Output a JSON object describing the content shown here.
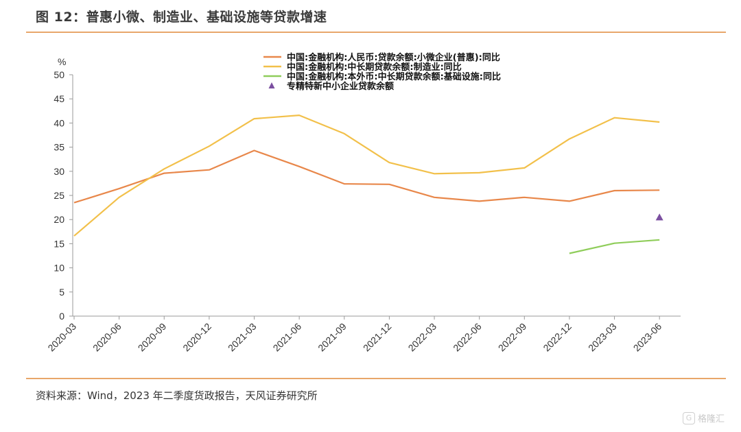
{
  "figure": {
    "title": "图 12：普惠小微、制造业、基础设施等贷款增速",
    "source": "资料来源：Wind，2023 年二季度货政报告，天风证券研究所",
    "watermark": "格隆汇"
  },
  "chart_data": {
    "type": "line",
    "ylabel": "%",
    "ylim": [
      0,
      50
    ],
    "yticks": [
      0,
      5,
      10,
      15,
      20,
      25,
      30,
      35,
      40,
      45,
      50
    ],
    "grid": false,
    "legend_position": "top",
    "categories": [
      "2020-03",
      "2020-06",
      "2020-09",
      "2020-12",
      "2021-03",
      "2021-06",
      "2021-09",
      "2021-12",
      "2022-03",
      "2022-06",
      "2022-09",
      "2022-12",
      "2023-03",
      "2023-06"
    ],
    "series": [
      {
        "name": "中国:金融机构:人民币:贷款余额:小微企业(普惠):同比",
        "color": "#e8874a",
        "marker": "line",
        "values": [
          23.5,
          26.4,
          29.6,
          30.3,
          34.3,
          31.0,
          27.4,
          27.3,
          24.6,
          23.8,
          24.6,
          23.8,
          26.0,
          26.1
        ]
      },
      {
        "name": "中国:金融机构:中长期贷款余额:制造业:同比",
        "color": "#f2c04a",
        "marker": "line",
        "values": [
          16.6,
          24.6,
          30.5,
          35.2,
          40.9,
          41.6,
          37.8,
          31.8,
          29.5,
          29.7,
          30.7,
          36.7,
          41.1,
          40.2
        ]
      },
      {
        "name": "中国:金融机构:本外币:中长期贷款余额:基础设施:同比",
        "color": "#8fcd5a",
        "marker": "line",
        "values": [
          null,
          null,
          null,
          null,
          null,
          null,
          null,
          null,
          null,
          null,
          null,
          13.0,
          15.1,
          15.8
        ]
      },
      {
        "name": "专精特新中小企业贷款余额",
        "color": "#7b4fa0",
        "marker": "triangle",
        "values": [
          null,
          null,
          null,
          null,
          null,
          null,
          null,
          null,
          null,
          null,
          null,
          null,
          null,
          20.4
        ]
      }
    ]
  }
}
